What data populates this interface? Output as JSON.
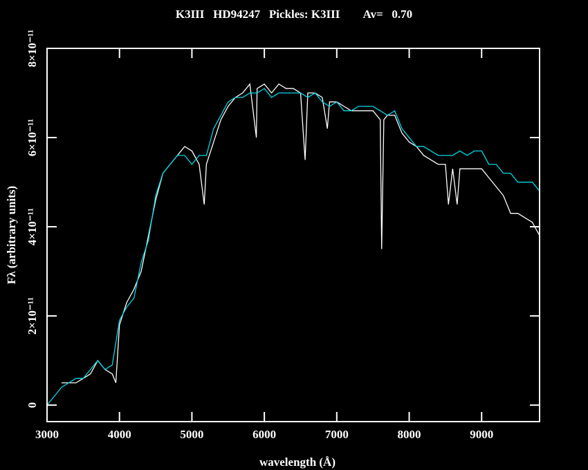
{
  "chart_data": {
    "type": "line",
    "title": "K3III   HD94247   Pickles: K3III        Av=   0.70",
    "x_label": "wavelength (Å)",
    "y_label": "Fλ (arbitrary units)",
    "xlim": [
      3000,
      9800
    ],
    "ylim": [
      -3.7e-12,
      8e-11
    ],
    "xticks": [
      3000,
      4000,
      5000,
      6000,
      7000,
      8000,
      9000
    ],
    "yticks": [
      0,
      {
        "value": 2e-11,
        "label": "2×10⁻¹¹"
      },
      {
        "value": 4e-11,
        "label": "4×10⁻¹¹"
      },
      {
        "value": 6e-11,
        "label": "6×10⁻¹¹"
      },
      {
        "value": 8e-11,
        "label": "8×10⁻¹¹"
      }
    ],
    "series": [
      {
        "color": "#ffffff",
        "x": [
          3200,
          3300,
          3400,
          3500,
          3600,
          3700,
          3800,
          3900,
          3950,
          4000,
          4100,
          4200,
          4300,
          4400,
          4500,
          4600,
          4700,
          4800,
          4900,
          5000,
          5100,
          5170,
          5200,
          5300,
          5400,
          5500,
          5600,
          5700,
          5800,
          5890,
          5900,
          6000,
          6100,
          6200,
          6300,
          6400,
          6500,
          6563,
          6600,
          6700,
          6800,
          6870,
          6900,
          7000,
          7100,
          7200,
          7300,
          7400,
          7500,
          7600,
          7620,
          7650,
          7700,
          7800,
          7900,
          8000,
          8100,
          8200,
          8300,
          8400,
          8500,
          8542,
          8600,
          8662,
          8700,
          8800,
          8900,
          9000,
          9100,
          9200,
          9300,
          9400,
          9500,
          9600,
          9700,
          9800
        ],
        "values": [
          5e-12,
          5e-12,
          5e-12,
          6e-12,
          7e-12,
          1e-11,
          8e-12,
          7e-12,
          5e-12,
          1.8e-11,
          2.3e-11,
          2.6e-11,
          3e-11,
          3.8e-11,
          4.6e-11,
          5.2e-11,
          5.4e-11,
          5.6e-11,
          5.8e-11,
          5.7e-11,
          5.4e-11,
          4.5e-11,
          5.4e-11,
          5.9e-11,
          6.4e-11,
          6.7e-11,
          6.9e-11,
          7e-11,
          7.2e-11,
          6e-11,
          7.1e-11,
          7.2e-11,
          7e-11,
          7.2e-11,
          7.1e-11,
          7.1e-11,
          7e-11,
          5.5e-11,
          7e-11,
          7e-11,
          6.9e-11,
          6.2e-11,
          6.8e-11,
          6.8e-11,
          6.7e-11,
          6.6e-11,
          6.6e-11,
          6.6e-11,
          6.6e-11,
          6.4e-11,
          3.5e-11,
          6.4e-11,
          6.5e-11,
          6.5e-11,
          6.1e-11,
          5.9e-11,
          5.8e-11,
          5.6e-11,
          5.5e-11,
          5.4e-11,
          5.4e-11,
          4.5e-11,
          5.3e-11,
          4.5e-11,
          5.3e-11,
          5.3e-11,
          5.3e-11,
          5.3e-11,
          5.1e-11,
          4.9e-11,
          4.7e-11,
          4.3e-11,
          4.3e-11,
          4.2e-11,
          4.1e-11,
          3.8e-11
        ]
      },
      {
        "color": "#00d8e8",
        "x": [
          3000,
          3100,
          3200,
          3300,
          3400,
          3500,
          3600,
          3700,
          3800,
          3900,
          4000,
          4100,
          4200,
          4300,
          4400,
          4500,
          4600,
          4700,
          4800,
          4900,
          5000,
          5100,
          5200,
          5300,
          5400,
          5500,
          5600,
          5700,
          5800,
          5900,
          6000,
          6100,
          6200,
          6300,
          6400,
          6500,
          6600,
          6700,
          6800,
          6900,
          7000,
          7100,
          7200,
          7300,
          7400,
          7500,
          7600,
          7700,
          7800,
          7900,
          8000,
          8100,
          8200,
          8300,
          8400,
          8500,
          8600,
          8700,
          8800,
          8900,
          9000,
          9100,
          9200,
          9300,
          9400,
          9500,
          9600,
          9700,
          9800
        ],
        "values": [
          0,
          2e-12,
          4e-12,
          5e-12,
          6e-12,
          6e-12,
          8e-12,
          1e-11,
          8e-12,
          9e-12,
          1.9e-11,
          2.2e-11,
          2.4e-11,
          3.2e-11,
          3.7e-11,
          4.7e-11,
          5.2e-11,
          5.4e-11,
          5.6e-11,
          5.6e-11,
          5.4e-11,
          5.6e-11,
          5.6e-11,
          6.2e-11,
          6.5e-11,
          6.8e-11,
          6.9e-11,
          6.9e-11,
          7e-11,
          7e-11,
          7.1e-11,
          6.9e-11,
          7e-11,
          7e-11,
          7e-11,
          7e-11,
          6.9e-11,
          7e-11,
          6.8e-11,
          6.7e-11,
          6.8e-11,
          6.6e-11,
          6.6e-11,
          6.7e-11,
          6.7e-11,
          6.7e-11,
          6.6e-11,
          6.5e-11,
          6.6e-11,
          6.2e-11,
          6e-11,
          5.8e-11,
          5.8e-11,
          5.7e-11,
          5.6e-11,
          5.6e-11,
          5.6e-11,
          5.7e-11,
          5.6e-11,
          5.7e-11,
          5.7e-11,
          5.4e-11,
          5.4e-11,
          5.2e-11,
          5.2e-11,
          5e-11,
          5e-11,
          5e-11,
          4.8e-11
        ]
      }
    ]
  }
}
